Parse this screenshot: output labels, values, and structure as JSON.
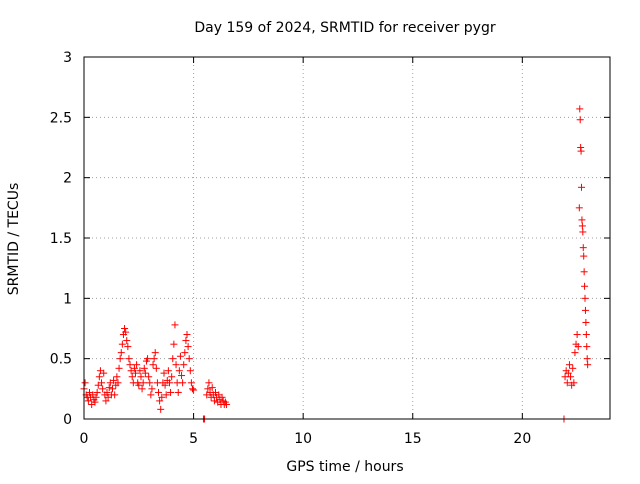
{
  "chart_data": {
    "type": "scatter",
    "title": "Day 159 of 2024, SRMTID for receiver pygr",
    "xlabel": "GPS time / hours",
    "ylabel": "SRMTID / TECUs",
    "xlim": [
      0,
      24
    ],
    "ylim": [
      0,
      3
    ],
    "xticks": [
      0,
      5,
      10,
      15,
      20
    ],
    "xtick_labels": [
      "0",
      "5",
      "10",
      "15",
      "20"
    ],
    "yticks": [
      0,
      0.5,
      1,
      1.5,
      2,
      2.5,
      3
    ],
    "ytick_labels": [
      "0",
      "0.5",
      "1",
      "1.5",
      "2",
      "2.5",
      "3"
    ],
    "grid": true,
    "marker": "+",
    "marker_color": "#ff0000",
    "series": [
      {
        "name": "SRMTID",
        "points": [
          [
            0.0,
            0.25
          ],
          [
            0.05,
            0.3
          ],
          [
            0.1,
            0.2
          ],
          [
            0.15,
            0.18
          ],
          [
            0.2,
            0.15
          ],
          [
            0.25,
            0.22
          ],
          [
            0.3,
            0.18
          ],
          [
            0.35,
            0.12
          ],
          [
            0.4,
            0.2
          ],
          [
            0.45,
            0.16
          ],
          [
            0.5,
            0.14
          ],
          [
            0.55,
            0.18
          ],
          [
            0.6,
            0.22
          ],
          [
            0.65,
            0.28
          ],
          [
            0.7,
            0.35
          ],
          [
            0.75,
            0.4
          ],
          [
            0.8,
            0.3
          ],
          [
            0.85,
            0.25
          ],
          [
            0.9,
            0.38
          ],
          [
            0.95,
            0.2
          ],
          [
            1.0,
            0.15
          ],
          [
            1.05,
            0.22
          ],
          [
            1.1,
            0.18
          ],
          [
            1.15,
            0.26
          ],
          [
            1.2,
            0.3
          ],
          [
            1.25,
            0.2
          ],
          [
            1.3,
            0.25
          ],
          [
            1.35,
            0.32
          ],
          [
            1.4,
            0.2
          ],
          [
            1.45,
            0.28
          ],
          [
            1.5,
            0.35
          ],
          [
            1.55,
            0.3
          ],
          [
            1.6,
            0.42
          ],
          [
            1.65,
            0.5
          ],
          [
            1.7,
            0.55
          ],
          [
            1.75,
            0.62
          ],
          [
            1.8,
            0.7
          ],
          [
            1.85,
            0.75
          ],
          [
            1.9,
            0.72
          ],
          [
            1.95,
            0.65
          ],
          [
            2.0,
            0.6
          ],
          [
            2.05,
            0.5
          ],
          [
            2.1,
            0.45
          ],
          [
            2.15,
            0.4
          ],
          [
            2.2,
            0.35
          ],
          [
            2.25,
            0.3
          ],
          [
            2.3,
            0.42
          ],
          [
            2.35,
            0.38
          ],
          [
            2.4,
            0.45
          ],
          [
            2.45,
            0.3
          ],
          [
            2.5,
            0.28
          ],
          [
            2.55,
            0.4
          ],
          [
            2.6,
            0.35
          ],
          [
            2.65,
            0.25
          ],
          [
            2.7,
            0.3
          ],
          [
            2.75,
            0.42
          ],
          [
            2.8,
            0.38
          ],
          [
            2.85,
            0.48
          ],
          [
            2.9,
            0.5
          ],
          [
            2.95,
            0.35
          ],
          [
            3.0,
            0.3
          ],
          [
            3.05,
            0.2
          ],
          [
            3.1,
            0.25
          ],
          [
            3.15,
            0.45
          ],
          [
            3.2,
            0.5
          ],
          [
            3.25,
            0.55
          ],
          [
            3.3,
            0.42
          ],
          [
            3.35,
            0.3
          ],
          [
            3.4,
            0.22
          ],
          [
            3.45,
            0.15
          ],
          [
            3.5,
            0.08
          ],
          [
            3.55,
            0.18
          ],
          [
            3.6,
            0.3
          ],
          [
            3.65,
            0.38
          ],
          [
            3.7,
            0.28
          ],
          [
            3.75,
            0.2
          ],
          [
            3.8,
            0.32
          ],
          [
            3.85,
            0.4
          ],
          [
            3.9,
            0.3
          ],
          [
            3.95,
            0.22
          ],
          [
            4.0,
            0.35
          ],
          [
            4.05,
            0.5
          ],
          [
            4.1,
            0.62
          ],
          [
            4.15,
            0.78
          ],
          [
            4.2,
            0.45
          ],
          [
            4.25,
            0.3
          ],
          [
            4.3,
            0.22
          ],
          [
            4.35,
            0.4
          ],
          [
            4.4,
            0.52
          ],
          [
            4.45,
            0.36
          ],
          [
            4.5,
            0.3
          ],
          [
            4.55,
            0.45
          ],
          [
            4.6,
            0.55
          ],
          [
            4.65,
            0.65
          ],
          [
            4.7,
            0.7
          ],
          [
            4.75,
            0.6
          ],
          [
            4.8,
            0.5
          ],
          [
            4.85,
            0.4
          ],
          [
            4.9,
            0.3
          ],
          [
            4.95,
            0.25
          ],
          [
            5.0,
            0.24
          ],
          [
            5.6,
            0.2
          ],
          [
            5.65,
            0.25
          ],
          [
            5.7,
            0.3
          ],
          [
            5.75,
            0.22
          ],
          [
            5.8,
            0.18
          ],
          [
            5.85,
            0.26
          ],
          [
            5.9,
            0.2
          ],
          [
            5.95,
            0.15
          ],
          [
            6.0,
            0.22
          ],
          [
            6.05,
            0.18
          ],
          [
            6.1,
            0.14
          ],
          [
            6.15,
            0.2
          ],
          [
            6.2,
            0.16
          ],
          [
            6.25,
            0.12
          ],
          [
            6.3,
            0.18
          ],
          [
            6.35,
            0.15
          ],
          [
            6.4,
            0.12
          ],
          [
            6.45,
            0.14
          ],
          [
            6.5,
            0.12
          ],
          [
            5.45,
            0.0
          ],
          [
            5.5,
            0.0
          ],
          [
            21.9,
            0.0
          ],
          [
            21.95,
            0.35
          ],
          [
            22.0,
            0.4
          ],
          [
            22.05,
            0.3
          ],
          [
            22.1,
            0.38
          ],
          [
            22.15,
            0.45
          ],
          [
            22.2,
            0.35
          ],
          [
            22.25,
            0.28
          ],
          [
            22.3,
            0.42
          ],
          [
            22.35,
            0.3
          ],
          [
            22.4,
            0.55
          ],
          [
            22.45,
            0.62
          ],
          [
            22.5,
            0.7
          ],
          [
            22.55,
            0.6
          ],
          [
            22.6,
            1.75
          ],
          [
            22.62,
            2.57
          ],
          [
            22.64,
            2.48
          ],
          [
            22.66,
            2.25
          ],
          [
            22.68,
            2.22
          ],
          [
            22.7,
            1.92
          ],
          [
            22.72,
            1.65
          ],
          [
            22.74,
            1.6
          ],
          [
            22.76,
            1.55
          ],
          [
            22.78,
            1.42
          ],
          [
            22.8,
            1.35
          ],
          [
            22.82,
            1.22
          ],
          [
            22.84,
            1.1
          ],
          [
            22.86,
            1.0
          ],
          [
            22.88,
            0.9
          ],
          [
            22.9,
            0.8
          ],
          [
            22.92,
            0.7
          ],
          [
            22.94,
            0.6
          ],
          [
            22.96,
            0.5
          ],
          [
            22.98,
            0.45
          ]
        ]
      }
    ]
  }
}
